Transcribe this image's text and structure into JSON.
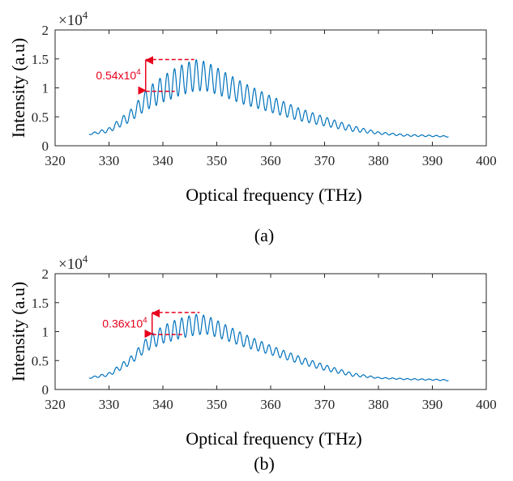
{
  "colors": {
    "line": "#0072bd",
    "annotation": "#e8001c",
    "axis": "#262626"
  },
  "chart_data": [
    {
      "type": "line",
      "panel_label": "(a)",
      "xlabel": "Optical frequency (THz)",
      "ylabel": "Intensity (a.u)",
      "y_multiplier": {
        "base": "×10",
        "exponent": "4"
      },
      "xlim": [
        320,
        400
      ],
      "ylim": [
        0,
        2
      ],
      "xticks": [
        "320",
        "330",
        "340",
        "350",
        "360",
        "370",
        "380",
        "390",
        "400"
      ],
      "yticks": [
        "0",
        "0.5",
        "1",
        "1.5",
        "2"
      ],
      "grid": false,
      "legend": "none",
      "spectrum": {
        "x_range": [
          326.3,
          393.0
        ],
        "fringe_period_THz": 1.35,
        "envelope_x": [
          326.3,
          330,
          334,
          337,
          340,
          343,
          346,
          348,
          350,
          355,
          360,
          365,
          370,
          375,
          380,
          385,
          390,
          393
        ],
        "envelope_y": [
          0.2,
          0.27,
          0.52,
          0.8,
          0.98,
          1.12,
          1.22,
          1.2,
          1.12,
          0.9,
          0.72,
          0.55,
          0.42,
          0.3,
          0.22,
          0.18,
          0.17,
          0.16
        ],
        "modulation_x": [
          326.3,
          330,
          335,
          338,
          342,
          346,
          348,
          352,
          360,
          370,
          380,
          393
        ],
        "modulation_y": [
          0.01,
          0.04,
          0.12,
          0.2,
          0.25,
          0.27,
          0.25,
          0.21,
          0.14,
          0.08,
          0.02,
          0.01
        ]
      },
      "annotation": {
        "text": "0.54x10",
        "exponent": "4",
        "x": 336.8,
        "y_top": 1.49,
        "y_bottom": 0.94,
        "top_line_to_x": 345.8,
        "bottom_line_to_x": 342.2
      }
    },
    {
      "type": "line",
      "panel_label": "(b)",
      "xlabel": "Optical frequency (THz)",
      "ylabel": "Intensity (a.u)",
      "y_multiplier": {
        "base": "×10",
        "exponent": "4"
      },
      "xlim": [
        320,
        400
      ],
      "ylim": [
        0,
        2
      ],
      "xticks": [
        "320",
        "330",
        "340",
        "350",
        "360",
        "370",
        "380",
        "390",
        "400"
      ],
      "yticks": [
        "0",
        "0.5",
        "1",
        "1.5",
        "2"
      ],
      "grid": false,
      "legend": "none",
      "spectrum": {
        "x_range": [
          326.3,
          393.0
        ],
        "fringe_period_THz": 1.35,
        "envelope_x": [
          326.3,
          330,
          334,
          337,
          340,
          343,
          346,
          348,
          350,
          355,
          360,
          365,
          370,
          375,
          380,
          385,
          390,
          393
        ],
        "envelope_y": [
          0.2,
          0.26,
          0.5,
          0.78,
          0.95,
          1.05,
          1.12,
          1.12,
          1.05,
          0.85,
          0.68,
          0.52,
          0.38,
          0.26,
          0.2,
          0.18,
          0.17,
          0.16
        ],
        "modulation_x": [
          326.3,
          330,
          335,
          338,
          342,
          346,
          348,
          352,
          360,
          370,
          380,
          393
        ],
        "modulation_y": [
          0.01,
          0.03,
          0.08,
          0.13,
          0.17,
          0.18,
          0.16,
          0.13,
          0.08,
          0.05,
          0.01,
          0.01
        ]
      },
      "annotation": {
        "text": "0.36x10",
        "exponent": "4",
        "x": 338.0,
        "y_top": 1.33,
        "y_bottom": 0.95,
        "top_line_to_x": 346.8,
        "bottom_line_to_x": 343.6
      }
    }
  ]
}
